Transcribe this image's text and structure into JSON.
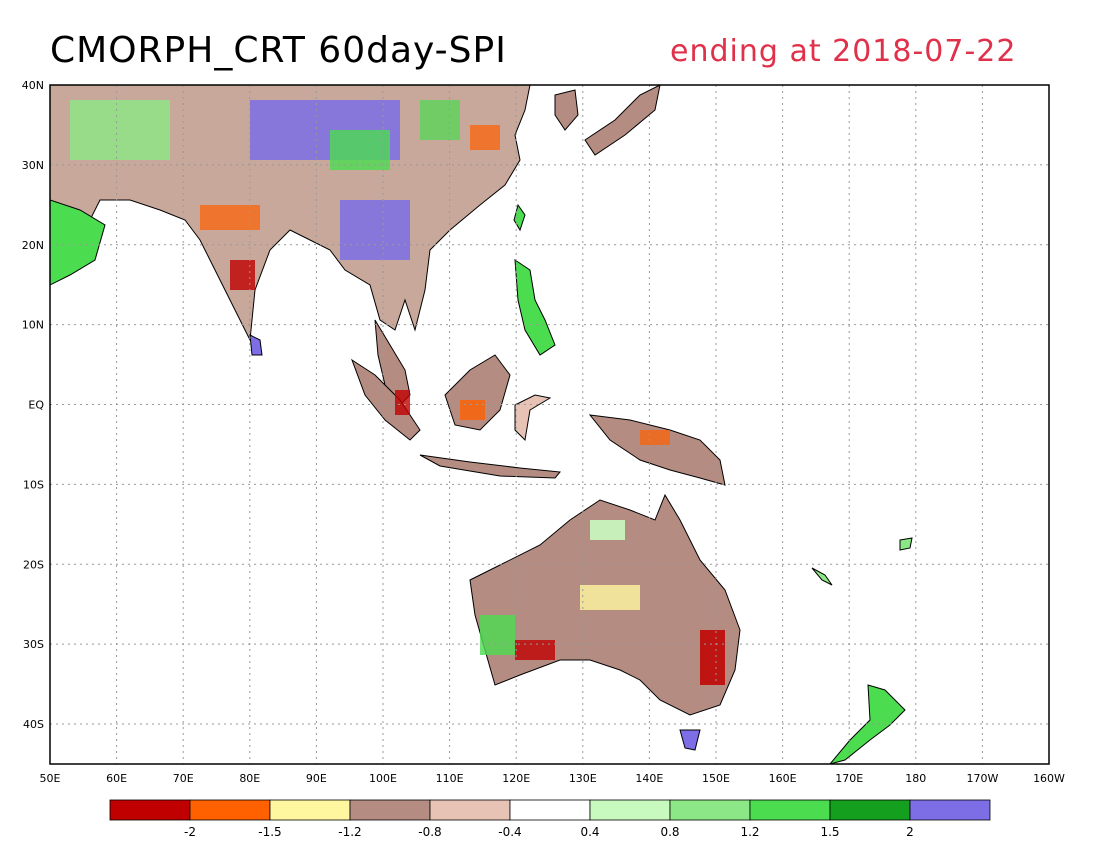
{
  "header": {
    "title": "CMORPH_CRT 60day-SPI",
    "subtitle": "ending at 2018-07-22"
  },
  "map": {
    "lon_labels": [
      "50E",
      "60E",
      "70E",
      "80E",
      "90E",
      "100E",
      "110E",
      "120E",
      "130E",
      "140E",
      "150E",
      "160E",
      "170E",
      "180",
      "170W",
      "160W"
    ],
    "lat_labels": [
      "40N",
      "30N",
      "20N",
      "10N",
      "EQ",
      "10S",
      "20S",
      "30S",
      "40S"
    ]
  },
  "legend": {
    "colors": [
      "#c00000",
      "#ff6000",
      "#fff7a0",
      "#b48c82",
      "#e6c3b4",
      "#ffffff",
      "#c8fac0",
      "#8ce886",
      "#4bdc50",
      "#14a01e",
      "#7d6ee6"
    ],
    "labels": [
      "-2",
      "-1.5",
      "-1.2",
      "-0.8",
      "-0.4",
      "0.4",
      "0.8",
      "1.2",
      "1.5",
      "2"
    ]
  }
}
